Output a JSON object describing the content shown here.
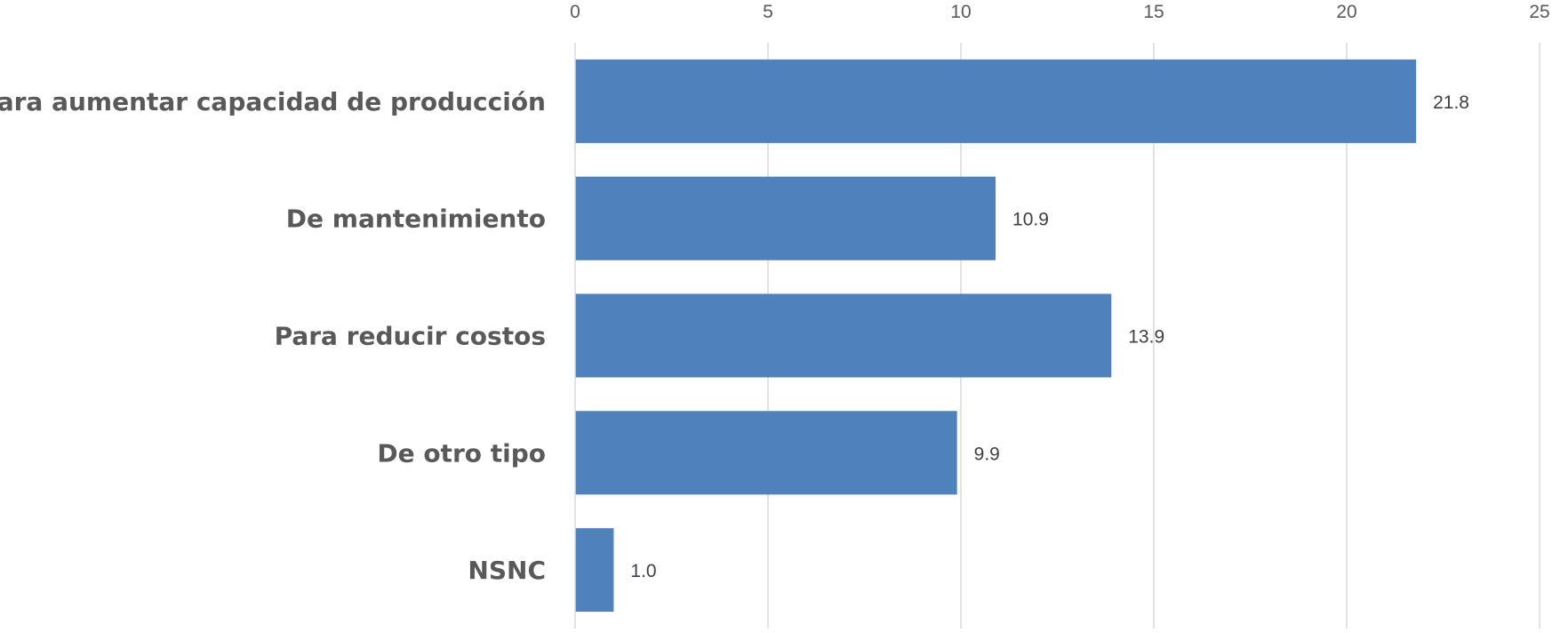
{
  "chart_data": {
    "type": "bar",
    "orientation": "horizontal",
    "categories": [
      "Para aumentar capacidad de producción",
      "De mantenimiento",
      "Para reducir costos",
      "De otro tipo",
      "NSNC"
    ],
    "values": [
      21.8,
      10.9,
      13.9,
      9.9,
      1.0
    ],
    "data_labels": [
      "21.8",
      "10.9",
      "13.9",
      "9.9",
      "1.0"
    ],
    "xlim": [
      0,
      25
    ],
    "x_ticks": [
      0,
      5,
      10,
      15,
      20,
      25
    ],
    "x_axis_position": "top",
    "grid": true,
    "legend": "none",
    "bar_color": "#4f81bd"
  }
}
